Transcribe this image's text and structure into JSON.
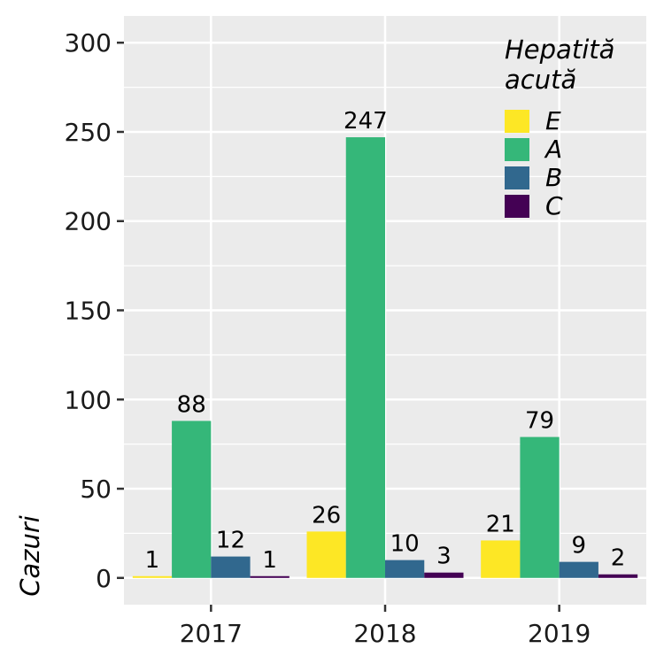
{
  "chart_data": {
    "type": "bar",
    "categories": [
      "2017",
      "2018",
      "2019"
    ],
    "series": [
      {
        "name": "E",
        "values": [
          1,
          26,
          21
        ],
        "color": "#FDE725"
      },
      {
        "name": "A",
        "values": [
          88,
          247,
          79
        ],
        "color": "#35B779"
      },
      {
        "name": "B",
        "values": [
          12,
          10,
          9
        ],
        "color": "#31688E"
      },
      {
        "name": "C",
        "values": [
          1,
          3,
          2
        ],
        "color": "#440154"
      }
    ],
    "title": "",
    "xlabel": "",
    "ylabel": "Cazuri",
    "ylim": [
      -15,
      315
    ],
    "yticks": [
      0,
      50,
      100,
      150,
      200,
      250,
      300
    ],
    "grid": true,
    "legend": {
      "title_lines": [
        "Hepatită",
        "acută"
      ],
      "placement": "top-right"
    },
    "panel_background": "#EBEBEB",
    "grid_color": "#FFFFFF"
  }
}
